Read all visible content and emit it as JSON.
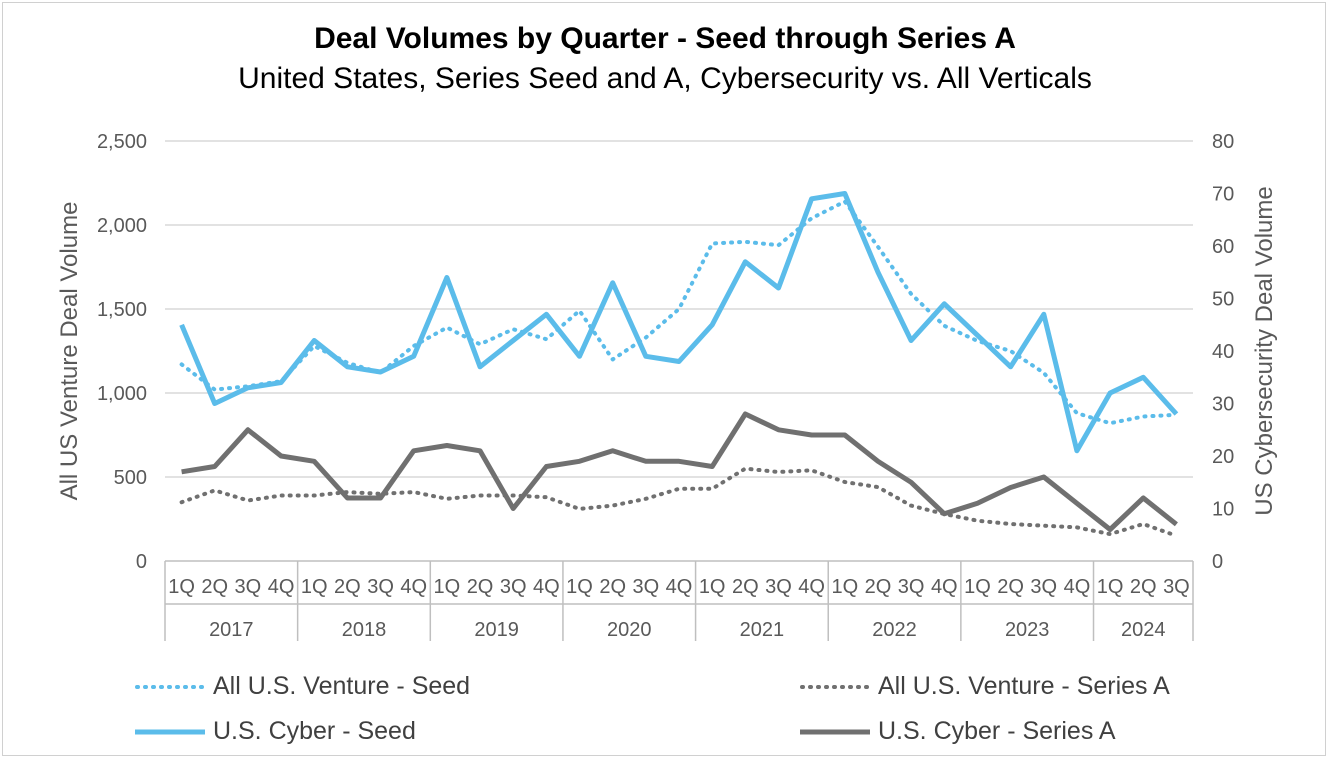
{
  "chart_data": {
    "type": "line",
    "title": "Deal Volumes by Quarter - Seed through Series A",
    "subtitle": "United States, Series Seed and A, Cybersecurity vs. All Verticals",
    "ylabel_left": "All US Venture Deal Volume",
    "ylabel_right": "US Cybersecurity Deal Volume",
    "ylim_left": [
      0,
      2500
    ],
    "ylim_right": [
      0,
      80
    ],
    "yticks_left": [
      "0",
      "500",
      "1,000",
      "1,500",
      "2,000",
      "2,500"
    ],
    "yticks_right": [
      "0",
      "10",
      "20",
      "30",
      "40",
      "50",
      "60",
      "70",
      "80"
    ],
    "quarters": [
      "1Q",
      "2Q",
      "3Q",
      "4Q",
      "1Q",
      "2Q",
      "3Q",
      "4Q",
      "1Q",
      "2Q",
      "3Q",
      "4Q",
      "1Q",
      "2Q",
      "3Q",
      "4Q",
      "1Q",
      "2Q",
      "3Q",
      "4Q",
      "1Q",
      "2Q",
      "3Q",
      "4Q",
      "1Q",
      "2Q",
      "3Q",
      "4Q",
      "1Q",
      "2Q",
      "3Q"
    ],
    "years": [
      {
        "label": "2017",
        "count": 4
      },
      {
        "label": "2018",
        "count": 4
      },
      {
        "label": "2019",
        "count": 4
      },
      {
        "label": "2020",
        "count": 4
      },
      {
        "label": "2021",
        "count": 4
      },
      {
        "label": "2022",
        "count": 4
      },
      {
        "label": "2023",
        "count": 4
      },
      {
        "label": "2024",
        "count": 3
      }
    ],
    "grid": true,
    "legend_position": "bottom",
    "series": [
      {
        "name": "All U.S. Venture - Seed",
        "axis": "left",
        "style": "dotted",
        "color": "#5bbcea",
        "values": [
          1170,
          1020,
          1040,
          1070,
          1280,
          1180,
          1120,
          1280,
          1390,
          1290,
          1380,
          1320,
          1490,
          1200,
          1330,
          1500,
          1890,
          1900,
          1880,
          2040,
          2140,
          1870,
          1590,
          1400,
          1310,
          1250,
          1120,
          880,
          820,
          860,
          870
        ]
      },
      {
        "name": "All U.S. Venture - Series A",
        "axis": "left",
        "style": "dotted",
        "color": "#707070",
        "values": [
          350,
          420,
          360,
          390,
          390,
          410,
          400,
          410,
          370,
          390,
          390,
          380,
          310,
          330,
          370,
          430,
          430,
          550,
          530,
          540,
          470,
          440,
          330,
          280,
          240,
          220,
          210,
          200,
          160,
          220,
          150
        ]
      },
      {
        "name": "U.S. Cyber - Seed",
        "axis": "right",
        "style": "solid",
        "color": "#5bbcea",
        "values": [
          45,
          30,
          33,
          34,
          42,
          37,
          36,
          39,
          54,
          37,
          42,
          47,
          39,
          53,
          39,
          38,
          45,
          57,
          52,
          69,
          70,
          55,
          42,
          49,
          43,
          37,
          47,
          21,
          32,
          35,
          28
        ]
      },
      {
        "name": "U.S. Cyber - Series A",
        "axis": "right",
        "style": "solid",
        "color": "#707070",
        "values": [
          17,
          18,
          25,
          20,
          19,
          12,
          12,
          21,
          22,
          21,
          10,
          18,
          19,
          21,
          19,
          19,
          18,
          28,
          25,
          24,
          24,
          19,
          15,
          9,
          11,
          14,
          16,
          11,
          6,
          12,
          7
        ]
      }
    ]
  }
}
